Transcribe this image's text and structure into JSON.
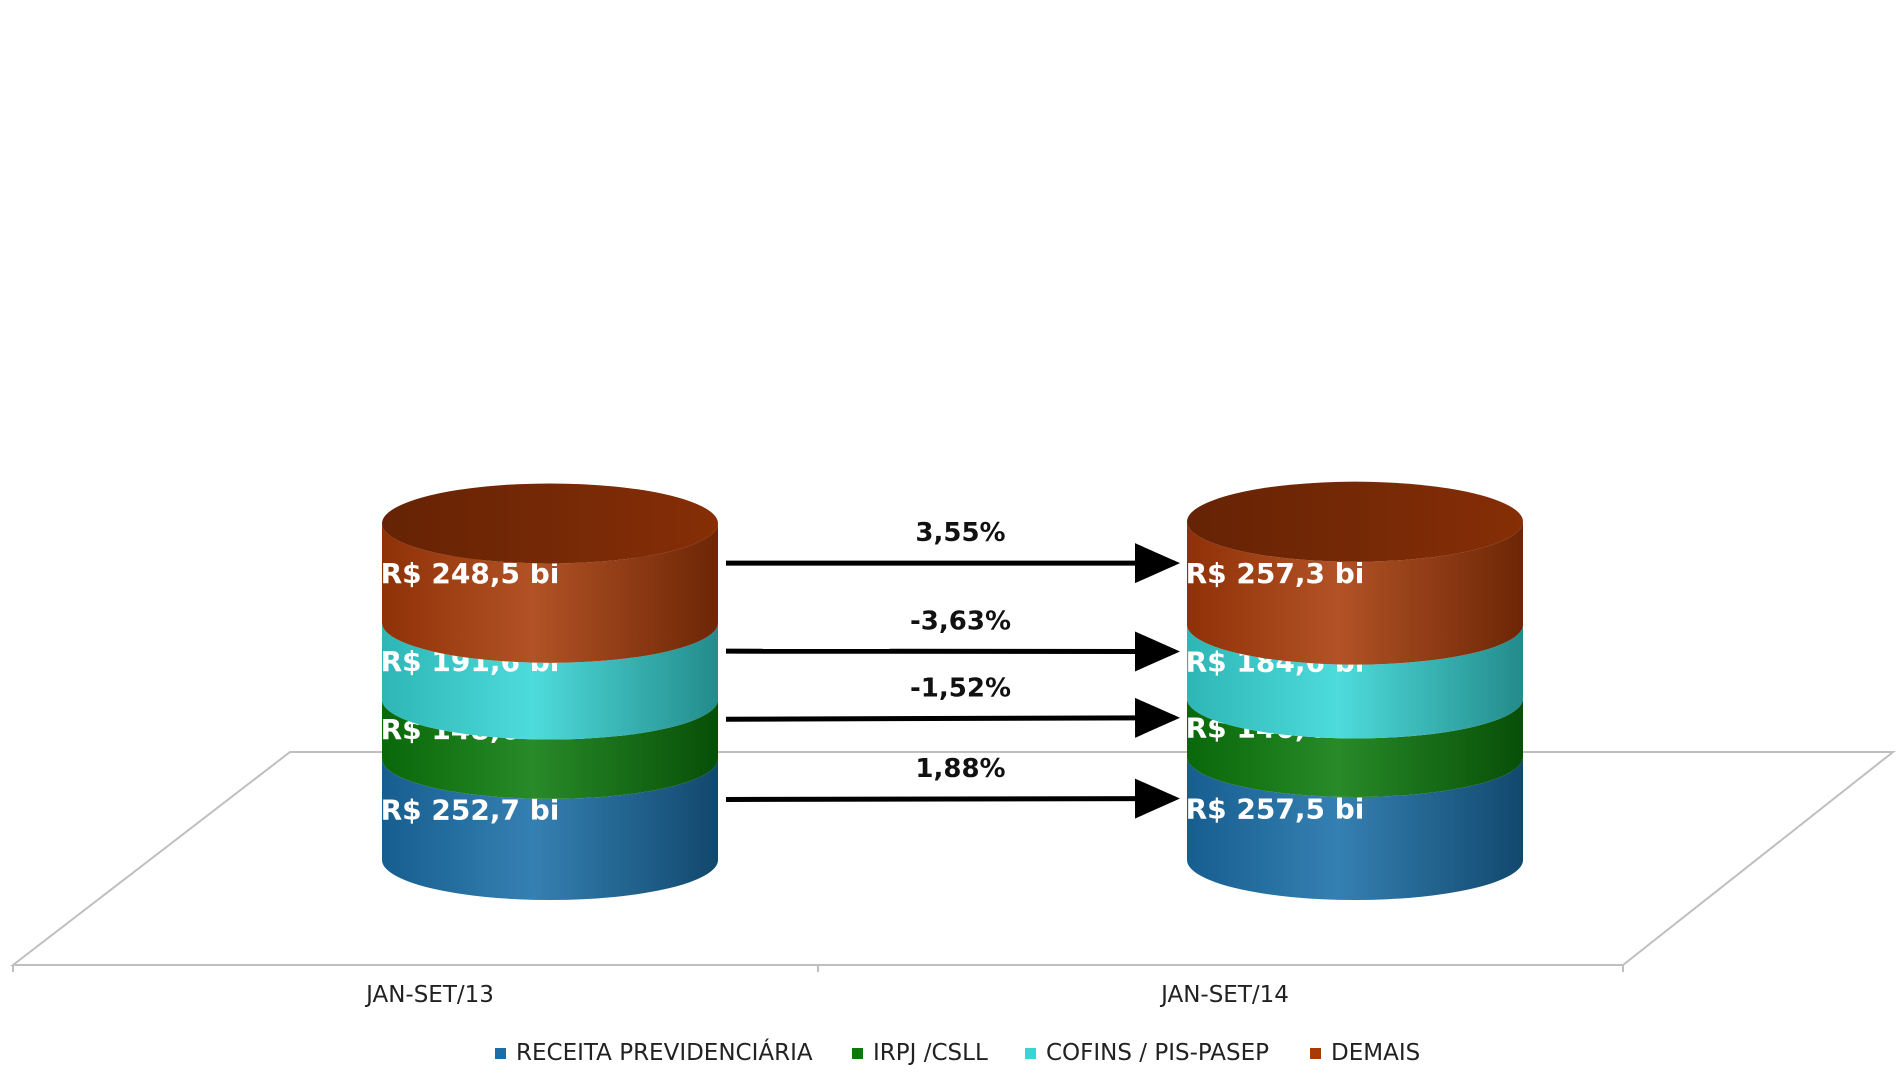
{
  "chart_data": {
    "type": "bar",
    "stacked": true,
    "style": "3d-cylinder",
    "unit": "R$ bi",
    "categories": [
      "JAN-SET/13",
      "JAN-SET/14"
    ],
    "series": [
      {
        "name": "RECEITA PREVIDENCIÁRIA",
        "color": "#1a6fa8",
        "values": [
          252.7,
          257.5
        ],
        "labels": [
          "R$ 252,7  bi",
          "R$ 257,5  bi"
        ]
      },
      {
        "name": "IRPJ /CSLL",
        "color": "#0b7a0b",
        "values": [
          148.6,
          146.4
        ],
        "labels": [
          "R$ 148,6  bi",
          "R$ 146,4  bi"
        ]
      },
      {
        "name": "COFINS / PIS-PASEP",
        "color": "#36d6d6",
        "values": [
          191.6,
          184.6
        ],
        "labels": [
          "R$ 191,6  bi",
          "R$ 184,6  bi"
        ]
      },
      {
        "name": "DEMAIS",
        "color": "#a83a08",
        "values": [
          248.5,
          257.3
        ],
        "labels": [
          "R$ 248,5  bi",
          "R$ 257,3  bi"
        ]
      }
    ],
    "annotations": [
      {
        "series": "RECEITA PREVIDENCIÁRIA",
        "text": "1,88%"
      },
      {
        "series": "IRPJ /CSLL",
        "text": "-1,52%"
      },
      {
        "series": "COFINS / PIS-PASEP",
        "text": "-3,63%"
      },
      {
        "series": "DEMAIS",
        "text": "3,55%"
      }
    ],
    "legend": {
      "position": "bottom"
    },
    "grid": false
  }
}
